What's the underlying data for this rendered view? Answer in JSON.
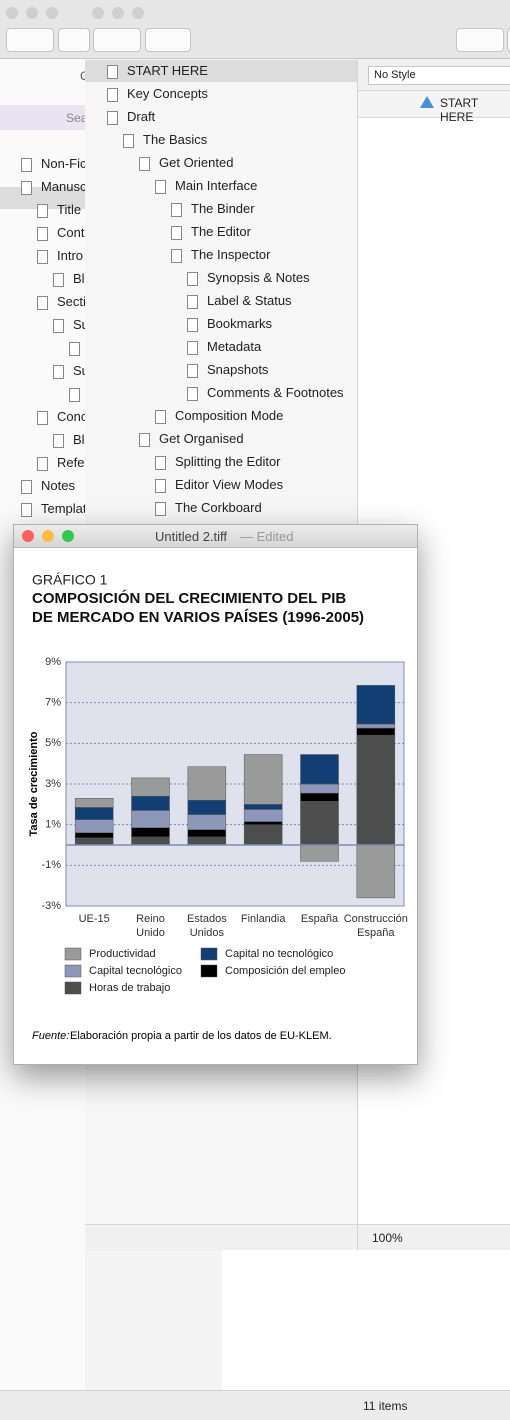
{
  "left_binder": {
    "header": "C",
    "search_placeholder": "Sea",
    "items": [
      "Non-Fic",
      "Manusc",
      "Title",
      "Conte",
      "Intro",
      "Bl",
      "Secti",
      "Su",
      "Su",
      "Conc",
      "Bl",
      "Refer",
      "Notes",
      "Templat"
    ]
  },
  "binder": {
    "items": [
      "START HERE",
      "Key Concepts",
      "Draft",
      "The Basics",
      "Get Oriented",
      "Main Interface",
      "The Binder",
      "The Editor",
      "The Inspector",
      "Synopsis & Notes",
      "Label & Status",
      "Bookmarks",
      "Metadata",
      "Snapshots",
      "Comments & Footnotes",
      "Composition Mode",
      "Get Organised",
      "Splitting the Editor",
      "Editor View Modes",
      "The Corkboard"
    ]
  },
  "editor": {
    "style": "No Style",
    "document": "START HERE",
    "zoom": "100%",
    "item_count": "11 items"
  },
  "image_window": {
    "file": "Untitled 2.tiff",
    "status": "— Edited",
    "chart_data": {
      "type": "stacked_bar",
      "subtitle": "GRÁFICO 1",
      "title": [
        "COMPOSICIÓN DEL CRECIMIENTO DEL PIB",
        "DE MERCADO EN VARIOS PAÍSES (1996-2005)"
      ],
      "ylabel": "Tasa de crecimiento",
      "categories": [
        [
          "UE-15"
        ],
        [
          "Reino",
          "Unido"
        ],
        [
          "Estados",
          "Unidos"
        ],
        [
          "Finlandia"
        ],
        [
          "España"
        ],
        [
          "Construcción",
          "España"
        ]
      ],
      "series": [
        {
          "name": "Productividad",
          "color": "#9a9a9a",
          "values": [
            0.45,
            0.9,
            1.65,
            2.45,
            -0.8,
            -2.6
          ]
        },
        {
          "name": "Capital tecnológico",
          "color": "#8c97b9",
          "values": [
            0.65,
            0.85,
            0.75,
            0.6,
            0.45,
            0.2
          ]
        },
        {
          "name": "Horas de trabajo",
          "color": "#4d4d4d",
          "values": [
            0.35,
            0.4,
            0.4,
            1.0,
            2.15,
            5.4
          ]
        },
        {
          "name": "Capital no tecnológico",
          "color": "#123f73",
          "values": [
            0.6,
            0.7,
            0.7,
            0.25,
            1.45,
            1.9
          ]
        },
        {
          "name": "Composición del empleo",
          "color": "#000000",
          "values": [
            0.25,
            0.45,
            0.35,
            0.15,
            0.4,
            0.35
          ]
        }
      ],
      "ylim": [
        -3,
        9
      ],
      "yticks": [
        {
          "value": -3,
          "label": "-3%"
        },
        {
          "value": -1,
          "label": "-1%"
        },
        {
          "value": 1,
          "label": "1%"
        },
        {
          "value": 3,
          "label": "3%"
        },
        {
          "value": 5,
          "label": "5%"
        },
        {
          "value": 7,
          "label": "7%"
        },
        {
          "value": 9,
          "label": "9%"
        }
      ],
      "grid": true,
      "source_label": "Fuente:",
      "source": "Elaboración propia a partir de los datos de EU-KLEM."
    }
  }
}
